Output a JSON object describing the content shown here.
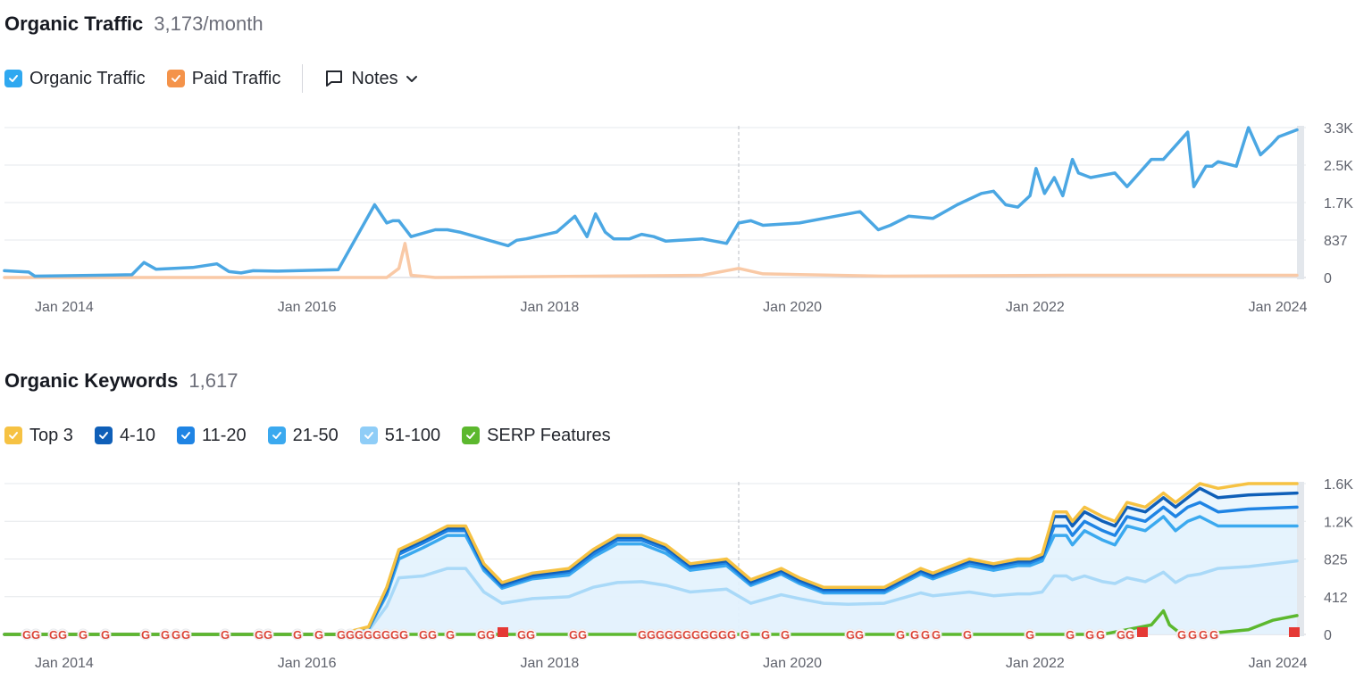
{
  "traffic_section": {
    "title": "Organic Traffic",
    "metric": "3,173/month",
    "legend": [
      {
        "label": "Organic Traffic",
        "color": "#2fa8f0"
      },
      {
        "label": "Paid Traffic",
        "color": "#f4934a"
      }
    ],
    "notes_label": "Notes"
  },
  "keywords_section": {
    "title": "Organic Keywords",
    "metric": "1,617",
    "legend": [
      {
        "label": "Top 3",
        "color": "#f6c243"
      },
      {
        "label": "4-10",
        "color": "#0f5fb8"
      },
      {
        "label": "11-20",
        "color": "#1f84e4"
      },
      {
        "label": "21-50",
        "color": "#3ba9ef"
      },
      {
        "label": "51-100",
        "color": "#8fcdf7"
      },
      {
        "label": "SERP Features",
        "color": "#5cb82e"
      }
    ]
  },
  "chart_data": [
    {
      "type": "line",
      "x_ticks": [
        "Jan 2014",
        "Jan 2016",
        "Jan 2018",
        "Jan 2020",
        "Jan 2022",
        "Jan 2024"
      ],
      "y_ticks": [
        "3.3K",
        "2.5K",
        "1.7K",
        "837",
        "0"
      ],
      "ylim": [
        0,
        3300
      ],
      "xlim": [
        2013.75,
        2024.4
      ],
      "series": [
        {
          "name": "Organic Traffic",
          "color": "#4ba7e3",
          "x": [
            2013.75,
            2013.95,
            2014.0,
            2014.8,
            2014.9,
            2015.0,
            2015.3,
            2015.5,
            2015.6,
            2015.7,
            2015.8,
            2016.0,
            2016.5,
            2016.8,
            2016.9,
            2016.95,
            2017.0,
            2017.1,
            2017.3,
            2017.4,
            2017.5,
            2017.9,
            2017.97,
            2018.05,
            2018.3,
            2018.45,
            2018.55,
            2018.62,
            2018.7,
            2018.77,
            2018.9,
            2019.0,
            2019.1,
            2019.2,
            2019.5,
            2019.7,
            2019.8,
            2019.9,
            2020.0,
            2020.3,
            2020.5,
            2020.8,
            2020.95,
            2021.05,
            2021.2,
            2021.4,
            2021.6,
            2021.8,
            2021.9,
            2022.0,
            2022.1,
            2022.2,
            2022.25,
            2022.32,
            2022.4,
            2022.47,
            2022.55,
            2022.6,
            2022.7,
            2022.9,
            2023.0,
            2023.2,
            2023.3,
            2023.5,
            2023.55,
            2023.65,
            2023.7,
            2023.75,
            2023.9,
            2024.0,
            2024.1,
            2024.18,
            2024.25,
            2024.4
          ],
          "values": [
            150,
            120,
            30,
            60,
            330,
            180,
            220,
            300,
            130,
            100,
            150,
            140,
            170,
            1600,
            1200,
            1250,
            1250,
            900,
            1050,
            1050,
            1000,
            700,
            820,
            850,
            1000,
            1350,
            900,
            1400,
            1000,
            850,
            850,
            950,
            900,
            800,
            850,
            750,
            1200,
            1250,
            1150,
            1200,
            1300,
            1450,
            1050,
            1150,
            1350,
            1300,
            1600,
            1850,
            1900,
            1600,
            1550,
            1800,
            2400,
            1850,
            2200,
            1800,
            2600,
            2300,
            2200,
            2300,
            2000,
            2600,
            2600,
            3200,
            2000,
            2450,
            2450,
            2550,
            2450,
            3300,
            2700,
            2900,
            3100,
            3250
          ]
        },
        {
          "name": "Paid Traffic",
          "color": "#f9c9a6",
          "x": [
            2013.75,
            2016.9,
            2017.0,
            2017.05,
            2017.1,
            2017.3,
            2019.5,
            2019.6,
            2019.8,
            2020.0,
            2021.0,
            2022.5,
            2024.4
          ],
          "values": [
            0,
            0,
            200,
            750,
            50,
            0,
            50,
            100,
            200,
            80,
            30,
            50,
            50
          ]
        }
      ]
    },
    {
      "type": "area",
      "x_ticks": [
        "Jan 2014",
        "Jan 2016",
        "Jan 2018",
        "Jan 2020",
        "Jan 2022",
        "Jan 2024"
      ],
      "y_ticks": [
        "1.6K",
        "1.2K",
        "825",
        "412",
        "0"
      ],
      "ylim": [
        0,
        1600
      ],
      "xlim": [
        2013.75,
        2024.4
      ],
      "series": [
        {
          "name": "Top 3",
          "color": "#f6c243",
          "x": [
            2013.75,
            2016.5,
            2016.75,
            2016.9,
            2017.0,
            2017.2,
            2017.4,
            2017.55,
            2017.7,
            2017.85,
            2018.1,
            2018.4,
            2018.6,
            2018.8,
            2019.0,
            2019.2,
            2019.4,
            2019.7,
            2019.9,
            2020.15,
            2020.3,
            2020.5,
            2020.7,
            2021.0,
            2021.3,
            2021.4,
            2021.7,
            2021.9,
            2022.1,
            2022.2,
            2022.3,
            2022.4,
            2022.5,
            2022.55,
            2022.65,
            2022.8,
            2022.9,
            2023.0,
            2023.15,
            2023.3,
            2023.4,
            2023.5,
            2023.6,
            2023.75,
            2024.0,
            2024.4
          ],
          "values": [
            0,
            0,
            80,
            500,
            900,
            1020,
            1150,
            1150,
            750,
            550,
            650,
            700,
            900,
            1050,
            1050,
            950,
            750,
            800,
            580,
            700,
            600,
            500,
            500,
            500,
            700,
            650,
            800,
            750,
            800,
            800,
            850,
            1300,
            1300,
            1200,
            1350,
            1250,
            1200,
            1400,
            1350,
            1500,
            1400,
            1500,
            1600,
            1550,
            1600,
            1600
          ]
        },
        {
          "name": "4-10",
          "color": "#0f5fb8",
          "x": [
            2013.75,
            2016.5,
            2016.75,
            2016.9,
            2017.0,
            2017.2,
            2017.4,
            2017.55,
            2017.7,
            2017.85,
            2018.1,
            2018.4,
            2018.6,
            2018.8,
            2019.0,
            2019.2,
            2019.4,
            2019.7,
            2019.9,
            2020.15,
            2020.3,
            2020.5,
            2020.7,
            2021.0,
            2021.3,
            2021.4,
            2021.7,
            2021.9,
            2022.1,
            2022.2,
            2022.3,
            2022.4,
            2022.5,
            2022.55,
            2022.65,
            2022.8,
            2022.9,
            2023.0,
            2023.15,
            2023.3,
            2023.4,
            2023.5,
            2023.6,
            2023.75,
            2024.0,
            2024.4
          ],
          "values": [
            0,
            0,
            75,
            480,
            880,
            1000,
            1130,
            1130,
            730,
            530,
            630,
            680,
            880,
            1030,
            1030,
            930,
            730,
            780,
            560,
            680,
            580,
            480,
            480,
            480,
            680,
            630,
            780,
            730,
            780,
            780,
            830,
            1250,
            1250,
            1150,
            1300,
            1200,
            1150,
            1350,
            1300,
            1450,
            1350,
            1450,
            1550,
            1450,
            1480,
            1500
          ]
        },
        {
          "name": "11-20",
          "color": "#1f84e4",
          "x": [
            2013.75,
            2016.5,
            2016.75,
            2016.9,
            2017.0,
            2017.2,
            2017.4,
            2017.55,
            2017.7,
            2017.85,
            2018.1,
            2018.4,
            2018.6,
            2018.8,
            2019.0,
            2019.2,
            2019.4,
            2019.7,
            2019.9,
            2020.15,
            2020.3,
            2020.5,
            2020.7,
            2021.0,
            2021.3,
            2021.4,
            2021.7,
            2021.9,
            2022.1,
            2022.2,
            2022.3,
            2022.4,
            2022.5,
            2022.55,
            2022.65,
            2022.8,
            2022.9,
            2023.0,
            2023.15,
            2023.3,
            2023.4,
            2023.5,
            2023.6,
            2023.75,
            2024.0,
            2024.4
          ],
          "values": [
            0,
            0,
            70,
            450,
            850,
            970,
            1100,
            1100,
            710,
            510,
            610,
            660,
            850,
            1000,
            1000,
            900,
            710,
            760,
            540,
            660,
            560,
            460,
            460,
            460,
            660,
            610,
            760,
            710,
            760,
            760,
            810,
            1150,
            1150,
            1050,
            1200,
            1100,
            1050,
            1250,
            1200,
            1350,
            1250,
            1350,
            1400,
            1300,
            1330,
            1350
          ]
        },
        {
          "name": "21-50",
          "color": "#3ba9ef",
          "x": [
            2013.75,
            2016.5,
            2016.75,
            2016.9,
            2017.0,
            2017.2,
            2017.4,
            2017.55,
            2017.7,
            2017.85,
            2018.1,
            2018.4,
            2018.6,
            2018.8,
            2019.0,
            2019.2,
            2019.4,
            2019.7,
            2019.9,
            2020.15,
            2020.3,
            2020.5,
            2020.7,
            2021.0,
            2021.3,
            2021.4,
            2021.7,
            2021.9,
            2022.1,
            2022.2,
            2022.3,
            2022.4,
            2022.5,
            2022.55,
            2022.65,
            2022.8,
            2022.9,
            2023.0,
            2023.15,
            2023.3,
            2023.4,
            2023.5,
            2023.6,
            2023.75,
            2024.0,
            2024.4
          ],
          "values": [
            0,
            0,
            60,
            420,
            800,
            920,
            1050,
            1050,
            680,
            490,
            590,
            630,
            820,
            960,
            960,
            860,
            680,
            730,
            520,
            640,
            540,
            440,
            440,
            440,
            640,
            590,
            730,
            680,
            730,
            730,
            780,
            1050,
            1050,
            950,
            1100,
            1000,
            950,
            1150,
            1100,
            1250,
            1100,
            1200,
            1250,
            1150,
            1150,
            1150
          ]
        },
        {
          "name": "51-100",
          "color": "#a9d9f8",
          "x": [
            2013.75,
            2016.5,
            2016.75,
            2016.9,
            2017.0,
            2017.2,
            2017.4,
            2017.55,
            2017.7,
            2017.85,
            2018.1,
            2018.4,
            2018.6,
            2018.8,
            2019.0,
            2019.2,
            2019.4,
            2019.7,
            2019.9,
            2020.15,
            2020.3,
            2020.5,
            2020.7,
            2021.0,
            2021.3,
            2021.4,
            2021.7,
            2021.9,
            2022.1,
            2022.2,
            2022.3,
            2022.4,
            2022.5,
            2022.55,
            2022.65,
            2022.8,
            2022.9,
            2023.0,
            2023.15,
            2023.3,
            2023.4,
            2023.5,
            2023.6,
            2023.75,
            2024.0,
            2024.4
          ],
          "values": [
            0,
            0,
            40,
            300,
            600,
            620,
            700,
            700,
            450,
            330,
            380,
            400,
            500,
            550,
            560,
            520,
            450,
            480,
            330,
            420,
            380,
            330,
            320,
            330,
            440,
            410,
            450,
            410,
            430,
            430,
            450,
            620,
            620,
            580,
            620,
            560,
            540,
            600,
            560,
            660,
            550,
            620,
            640,
            700,
            720,
            780
          ]
        },
        {
          "name": "SERP Features",
          "color": "#5cb82e",
          "x": [
            2013.75,
            2022.8,
            2023.0,
            2023.2,
            2023.3,
            2023.35,
            2023.45,
            2023.6,
            2024.0,
            2024.2,
            2024.4
          ],
          "values": [
            0,
            0,
            50,
            100,
            250,
            100,
            0,
            0,
            50,
            150,
            200
          ]
        }
      ]
    }
  ]
}
